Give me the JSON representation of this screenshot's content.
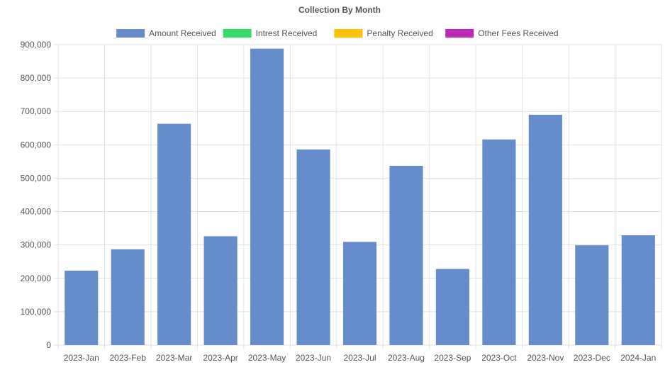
{
  "chart_data": {
    "type": "bar",
    "title": "Collection By Month",
    "categories": [
      "2023-Jan",
      "2023-Feb",
      "2023-Mar",
      "2023-Apr",
      "2023-May",
      "2023-Jun",
      "2023-Jul",
      "2023-Aug",
      "2023-Sep",
      "2023-Oct",
      "2023-Nov",
      "2023-Dec",
      "2024-Jan"
    ],
    "series": [
      {
        "name": "Amount Received",
        "color": "#658dcc",
        "values": [
          223000,
          287000,
          663000,
          326000,
          888000,
          586000,
          309000,
          537000,
          228000,
          616000,
          690000,
          299000,
          329000
        ]
      },
      {
        "name": "Intrest Received",
        "color": "#33dd66",
        "values": [
          0,
          0,
          0,
          0,
          0,
          0,
          0,
          0,
          0,
          0,
          0,
          0,
          0
        ]
      },
      {
        "name": "Penalty Received",
        "color": "#ffc107",
        "values": [
          0,
          0,
          0,
          0,
          0,
          0,
          0,
          0,
          0,
          0,
          0,
          0,
          0
        ]
      },
      {
        "name": "Other Fees Received",
        "color": "#c026b8",
        "values": [
          0,
          0,
          0,
          0,
          0,
          0,
          0,
          0,
          0,
          0,
          0,
          0,
          0
        ]
      }
    ],
    "ylim": [
      0,
      900000
    ],
    "yticks": [
      "0",
      "100,000",
      "200,000",
      "300,000",
      "400,000",
      "500,000",
      "600,000",
      "700,000",
      "800,000",
      "900,000"
    ],
    "grid": true,
    "legend_position": "top"
  }
}
